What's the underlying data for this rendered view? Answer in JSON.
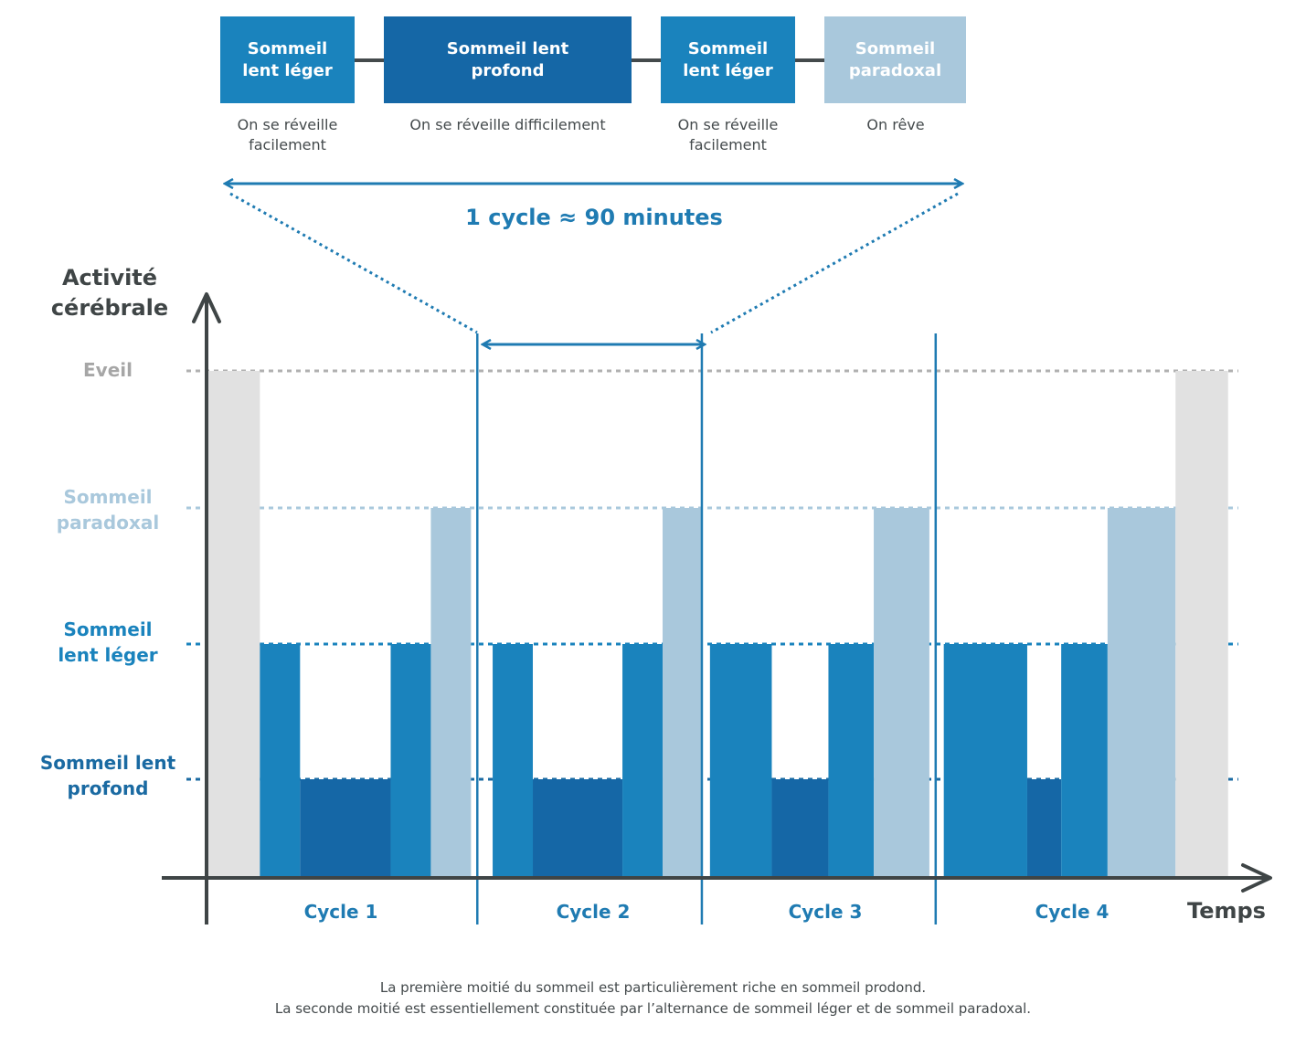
{
  "colors": {
    "light_sleep": "#1a83bd",
    "deep_sleep": "#1567a6",
    "rem_sleep": "#a9c8dc",
    "awake": "#e1e1e1",
    "axis": "#3f4546",
    "accent": "#1f7bb2",
    "awake_label": "#a6a6a6",
    "rem_label": "#a9c8dc",
    "light_label": "#1a83bd",
    "deep_label": "#1a6aa2"
  },
  "legend": {
    "stages": [
      {
        "title": "Sommeil\nlent léger",
        "description": "On se réveille\nfacilement",
        "color_key": "light_sleep"
      },
      {
        "title": "Sommeil lent\nprofond",
        "description": "On se réveille difficilement",
        "color_key": "deep_sleep"
      },
      {
        "title": "Sommeil\nlent léger",
        "description": "On se réveille\nfacilement",
        "color_key": "light_sleep"
      },
      {
        "title": "Sommeil\nparadoxal",
        "description": "On rêve",
        "color_key": "rem_sleep"
      }
    ],
    "cycle_note": "1 cycle ≈ 90 minutes"
  },
  "chart_data": {
    "type": "bar",
    "title": "",
    "ylabel": "Activité cérébrale",
    "xlabel": "Temps",
    "y_levels": [
      {
        "value": 4,
        "label": "Eveil",
        "color_key": "awake_label"
      },
      {
        "value": 3,
        "label": "Sommeil\nparadoxal",
        "color_key": "rem_label"
      },
      {
        "value": 2,
        "label": "Sommeil\nlent léger",
        "color_key": "light_label"
      },
      {
        "value": 1,
        "label": "Sommeil lent\nprofond",
        "color_key": "deep_label"
      }
    ],
    "ylim": [
      0,
      4
    ],
    "xlim": [
      0,
      100
    ],
    "cycles": [
      {
        "label": "Cycle 1",
        "start": 0,
        "end": 26.2
      },
      {
        "label": "Cycle 2",
        "start": 26.2,
        "end": 48.0
      },
      {
        "label": "Cycle 3",
        "start": 48.0,
        "end": 70.7
      },
      {
        "label": "Cycle 4",
        "start": 70.7,
        "end": 100
      }
    ],
    "segments": [
      {
        "stage": "Eveil",
        "start": 0,
        "end": 5.0,
        "level": 4,
        "color_key": "awake"
      },
      {
        "stage": "Sommeil lent léger",
        "start": 5.0,
        "end": 8.9,
        "level": 2,
        "color_key": "light_sleep"
      },
      {
        "stage": "Sommeil lent profond",
        "start": 8.9,
        "end": 17.7,
        "level": 1,
        "color_key": "deep_sleep"
      },
      {
        "stage": "Sommeil lent léger",
        "start": 17.7,
        "end": 21.6,
        "level": 2,
        "color_key": "light_sleep"
      },
      {
        "stage": "Sommeil paradoxal",
        "start": 21.6,
        "end": 25.5,
        "level": 3,
        "color_key": "rem_sleep"
      },
      {
        "stage": "Sommeil lent léger",
        "start": 27.6,
        "end": 31.5,
        "level": 2,
        "color_key": "light_sleep"
      },
      {
        "stage": "Sommeil lent profond",
        "start": 31.5,
        "end": 40.2,
        "level": 1,
        "color_key": "deep_sleep"
      },
      {
        "stage": "Sommeil lent léger",
        "start": 40.2,
        "end": 44.1,
        "level": 2,
        "color_key": "light_sleep"
      },
      {
        "stage": "Sommeil paradoxal",
        "start": 44.1,
        "end": 48.0,
        "level": 3,
        "color_key": "rem_sleep"
      },
      {
        "stage": "Sommeil lent léger",
        "start": 48.7,
        "end": 54.7,
        "level": 2,
        "color_key": "light_sleep"
      },
      {
        "stage": "Sommeil lent profond",
        "start": 54.7,
        "end": 60.2,
        "level": 1,
        "color_key": "deep_sleep"
      },
      {
        "stage": "Sommeil lent léger",
        "start": 60.2,
        "end": 64.6,
        "level": 2,
        "color_key": "light_sleep"
      },
      {
        "stage": "Sommeil paradoxal",
        "start": 64.6,
        "end": 70.0,
        "level": 3,
        "color_key": "rem_sleep"
      },
      {
        "stage": "Sommeil lent léger",
        "start": 71.4,
        "end": 79.5,
        "level": 2,
        "color_key": "light_sleep"
      },
      {
        "stage": "Sommeil lent profond",
        "start": 79.5,
        "end": 82.8,
        "level": 1,
        "color_key": "deep_sleep"
      },
      {
        "stage": "Sommeil lent léger",
        "start": 82.8,
        "end": 87.3,
        "level": 2,
        "color_key": "light_sleep"
      },
      {
        "stage": "Sommeil paradoxal",
        "start": 87.3,
        "end": 93.9,
        "level": 3,
        "color_key": "rem_sleep"
      },
      {
        "stage": "Eveil",
        "start": 93.9,
        "end": 99.0,
        "level": 4,
        "color_key": "awake"
      }
    ],
    "grid": true,
    "legend_position": "top"
  },
  "footer": {
    "line1": "La première moitié du sommeil est particulièrement riche en sommeil prodond.",
    "line2": "La seconde moitié est essentiellement constituée par l’alternance de sommeil léger et de sommeil paradoxal."
  }
}
